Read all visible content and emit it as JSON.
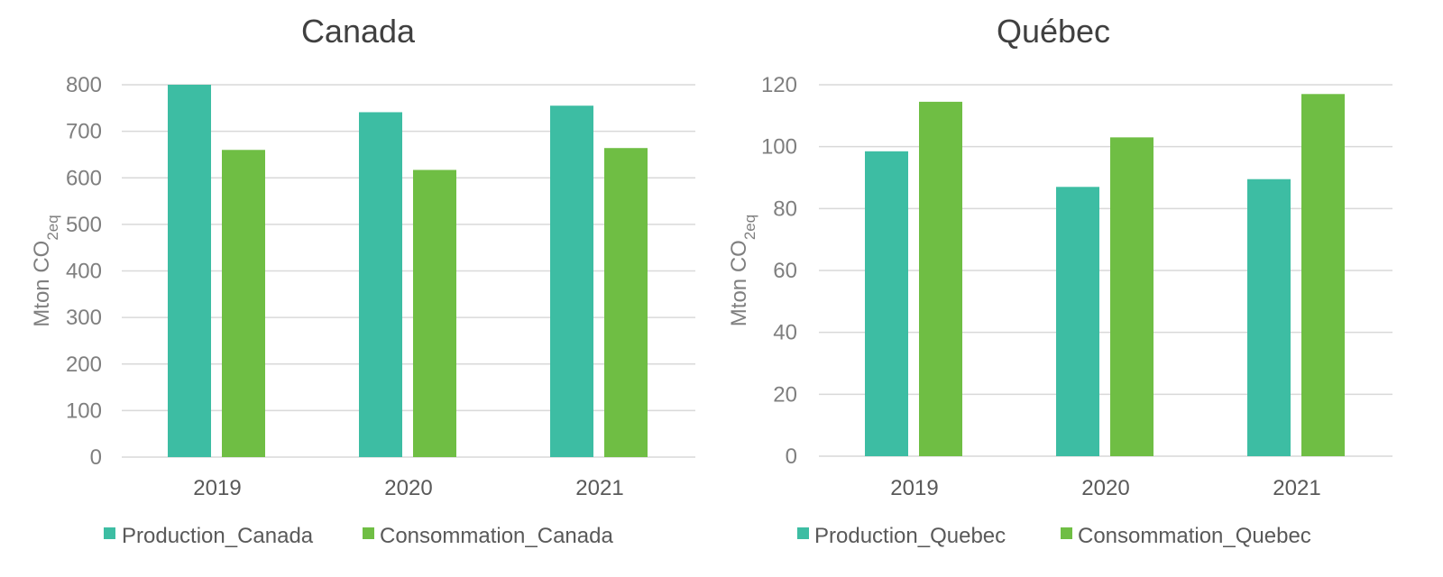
{
  "chart_data": [
    {
      "type": "bar",
      "title": "Canada",
      "ylabel": "Mton CO2eq",
      "ylabel_main": "Mton CO",
      "ylabel_sub": "2eq",
      "categories": [
        "2019",
        "2020",
        "2021"
      ],
      "ylim": [
        0,
        800
      ],
      "yticks": [
        0,
        100,
        200,
        300,
        400,
        500,
        600,
        700,
        800
      ],
      "grid": true,
      "legend_position": "bottom",
      "series": [
        {
          "name": "Production_Canada",
          "color": "#3dbda3",
          "values": [
            800,
            741,
            755
          ]
        },
        {
          "name": "Consommation_Canada",
          "color": "#6fbe44",
          "values": [
            660,
            617,
            664
          ]
        }
      ]
    },
    {
      "type": "bar",
      "title": "Québec",
      "ylabel": "Mton CO2eq",
      "ylabel_main": "Mton CO",
      "ylabel_sub": "2eq",
      "categories": [
        "2019",
        "2020",
        "2021"
      ],
      "ylim": [
        0,
        120
      ],
      "yticks": [
        0,
        20,
        40,
        60,
        80,
        100,
        120
      ],
      "grid": true,
      "legend_position": "bottom",
      "series": [
        {
          "name": "Production_Quebec",
          "color": "#3dbda3",
          "values": [
            98.5,
            87,
            89.5
          ]
        },
        {
          "name": "Consommation_Quebec",
          "color": "#6fbe44",
          "values": [
            114.5,
            103,
            117
          ]
        }
      ]
    }
  ]
}
